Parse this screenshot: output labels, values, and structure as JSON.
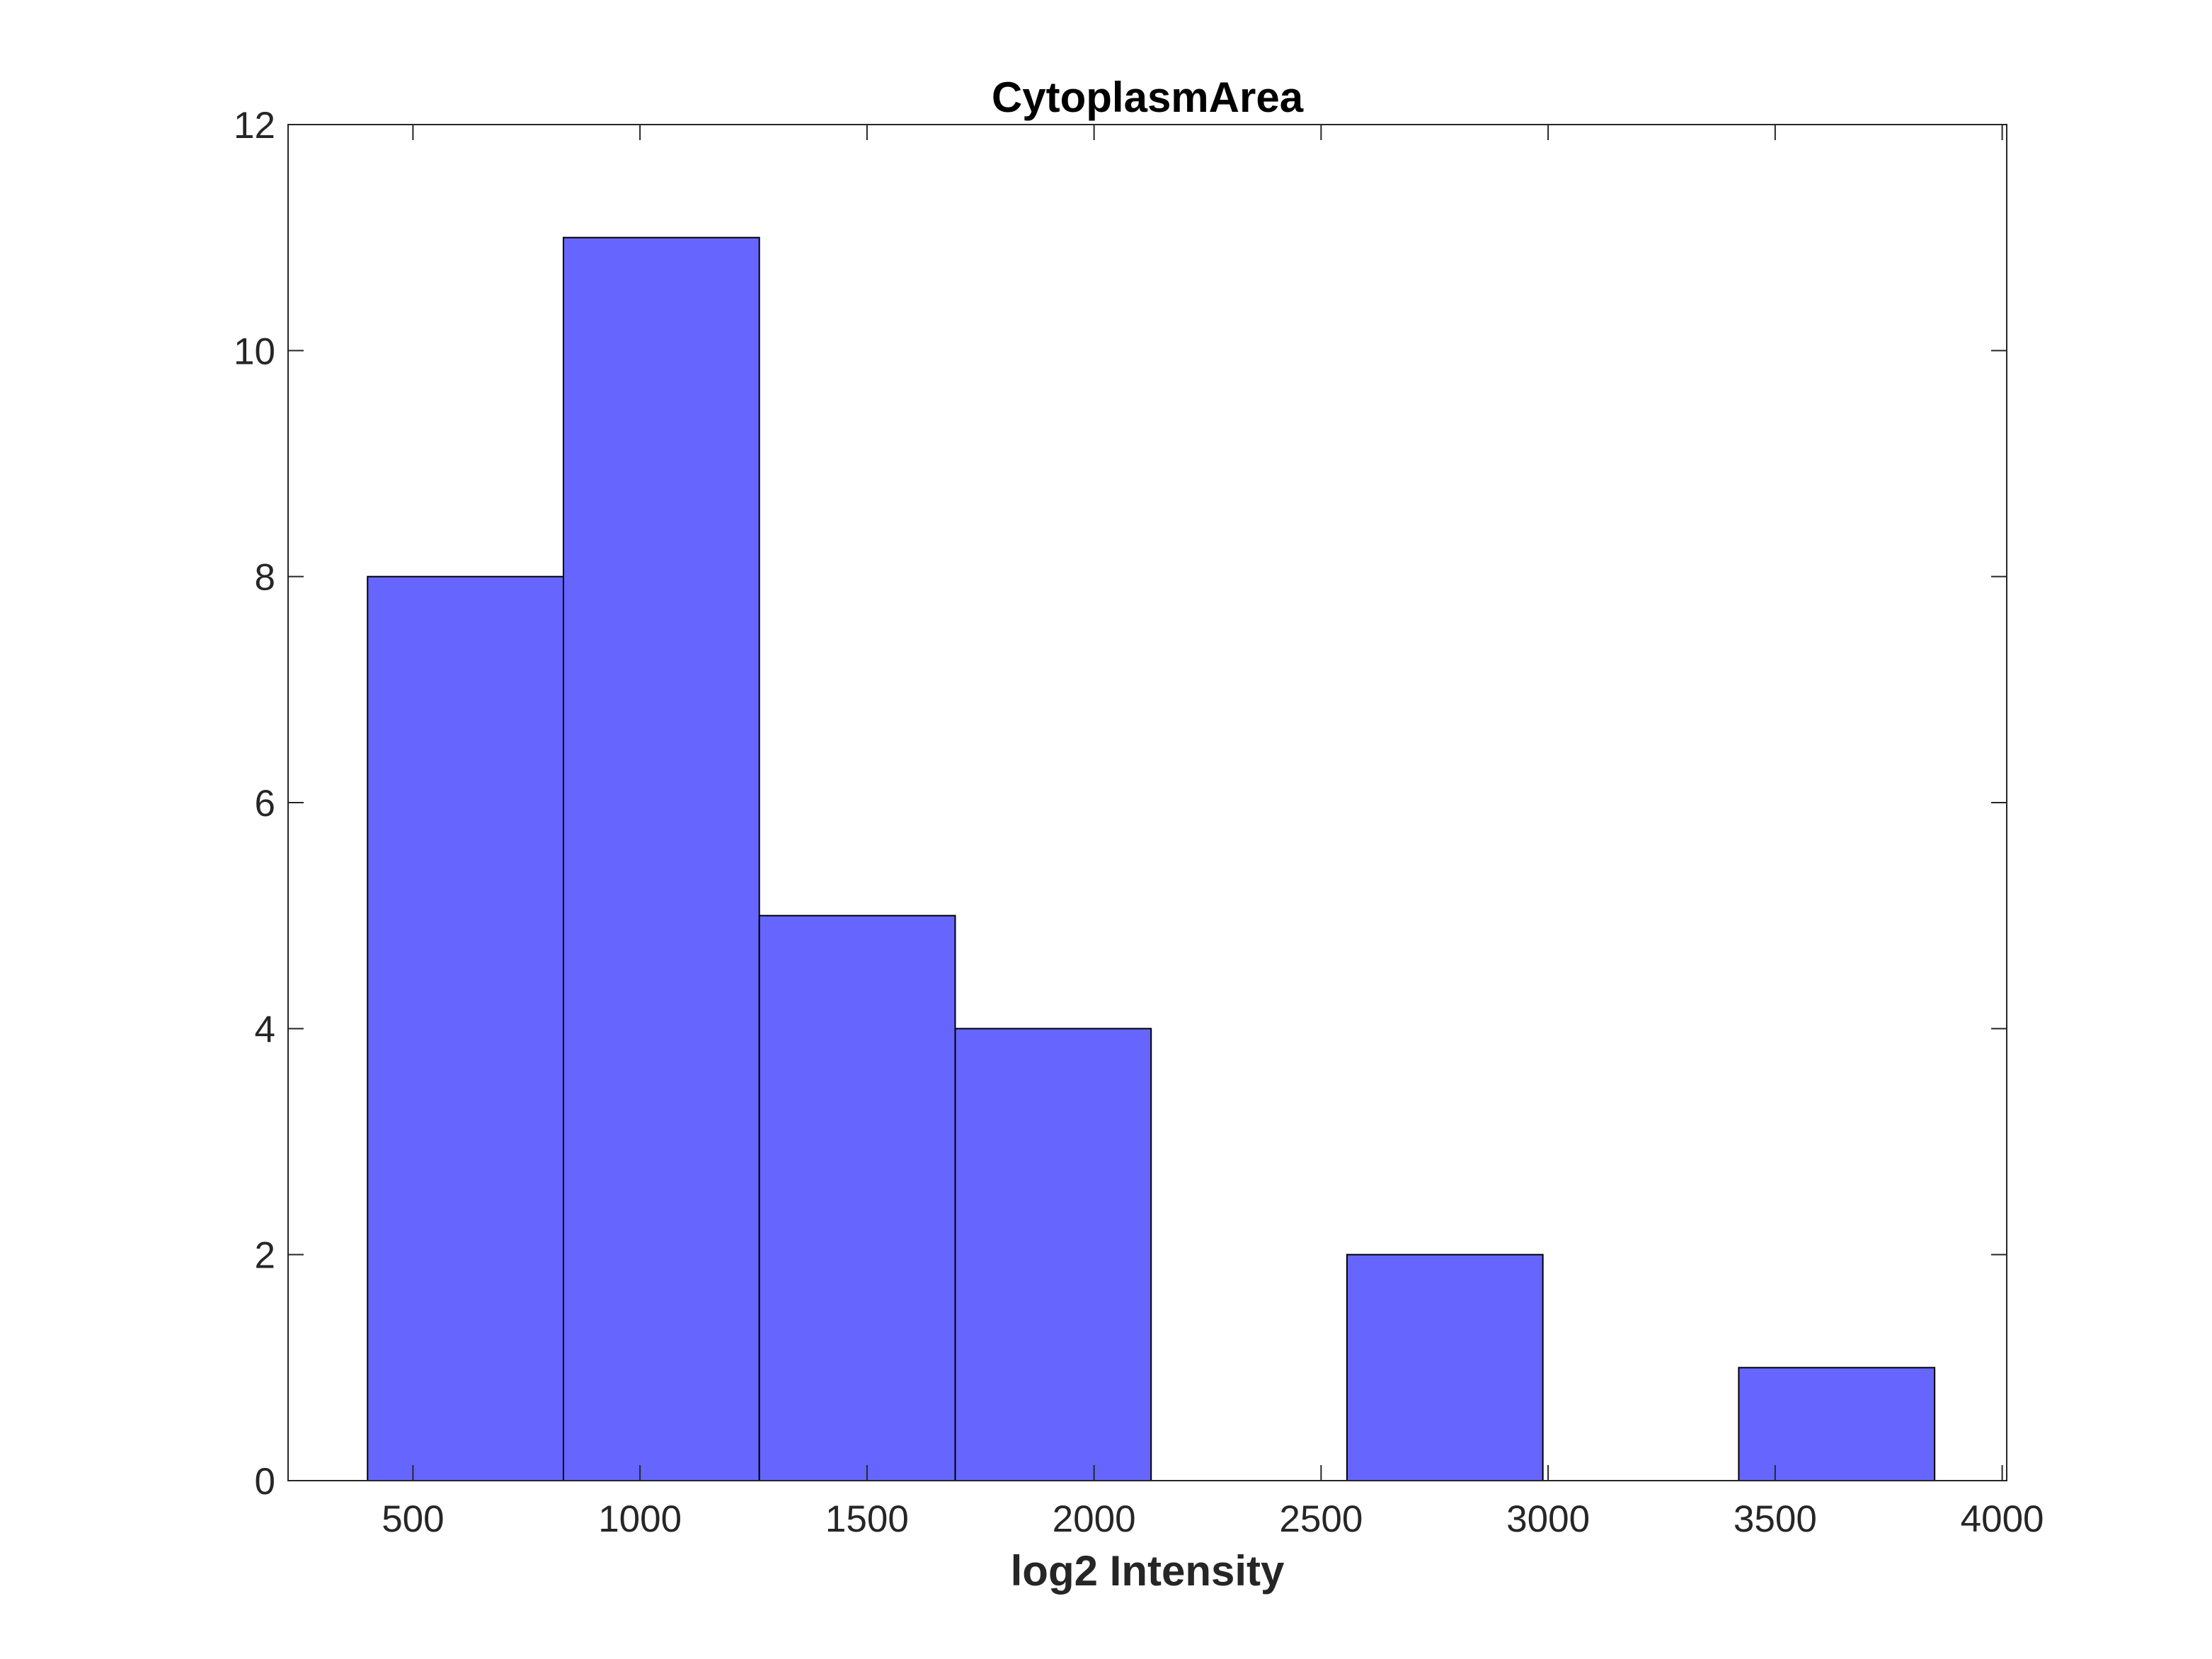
{
  "chart_data": {
    "type": "bar",
    "title": "CytoplasmArea",
    "xlabel": "log2 Intensity",
    "ylabel": "",
    "bin_edges": [
      400,
      831.4,
      1262.8,
      1694.2,
      2125.6,
      2557.0,
      2988.4,
      3419.8,
      3851.2
    ],
    "values": [
      8,
      11,
      5,
      4,
      0,
      2,
      0,
      1
    ],
    "xlim": [
      225,
      4010
    ],
    "ylim": [
      0,
      12
    ],
    "xticks": [
      500,
      1000,
      1500,
      2000,
      2500,
      3000,
      3500,
      4000
    ],
    "xtick_labels": [
      "500",
      "1000",
      "1500",
      "2000",
      "2500",
      "3000",
      "3500",
      "4000"
    ],
    "yticks": [
      0,
      2,
      4,
      6,
      8,
      10,
      12
    ],
    "ytick_labels": [
      "0",
      "2",
      "4",
      "6",
      "8",
      "10",
      "12"
    ],
    "grid": false,
    "bar_color": "#6666ff",
    "edge_color": "#000000"
  }
}
